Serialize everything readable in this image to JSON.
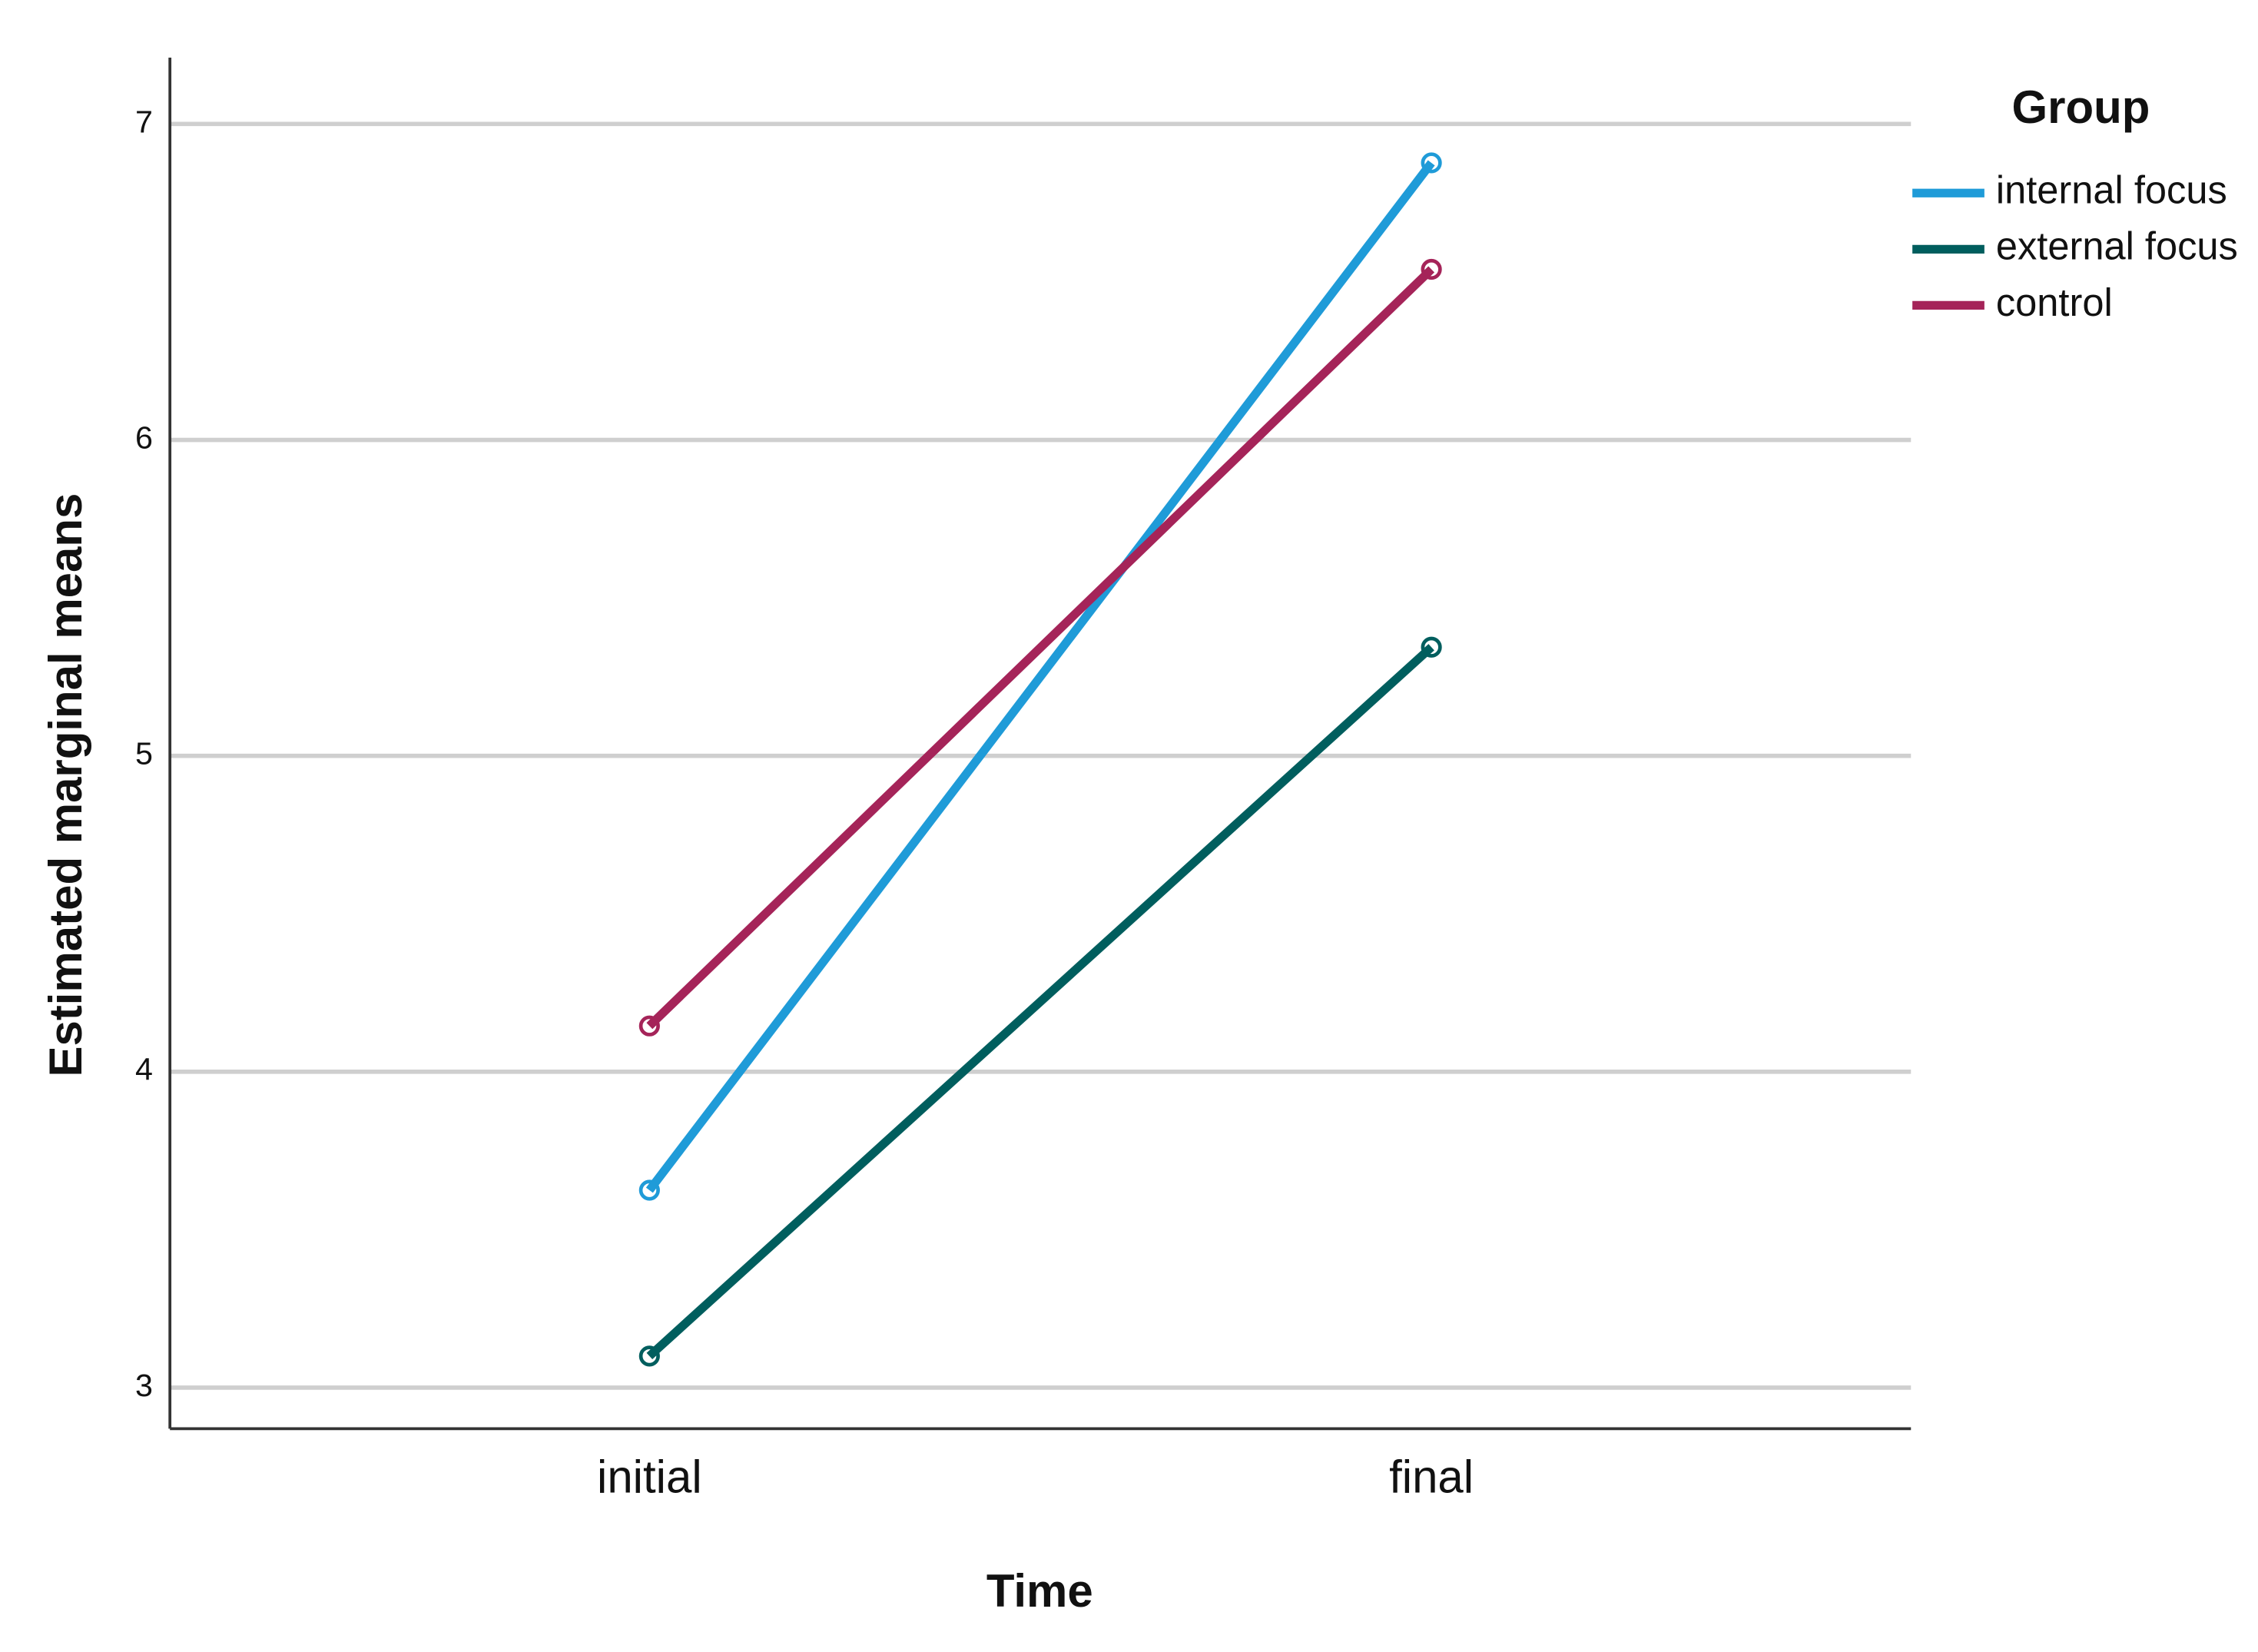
{
  "chart_data": {
    "type": "line",
    "x_label": "Time",
    "y_label": "Estimated marginal means",
    "legend_title": "Group",
    "categories": [
      "initial",
      "final"
    ],
    "series": [
      {
        "name": "internal focus",
        "color": "#1f9bd8",
        "values": [
          3.625,
          6.877
        ]
      },
      {
        "name": "external focus",
        "color": "#005e5e",
        "values": [
          3.1,
          5.344
        ]
      },
      {
        "name": "control",
        "color": "#a52459",
        "values": [
          4.145,
          6.54
        ]
      }
    ],
    "ylim": [
      2.87,
      7.21
    ],
    "yticks": [
      3,
      4,
      5,
      6,
      7
    ],
    "grid": true,
    "legend": "right"
  }
}
